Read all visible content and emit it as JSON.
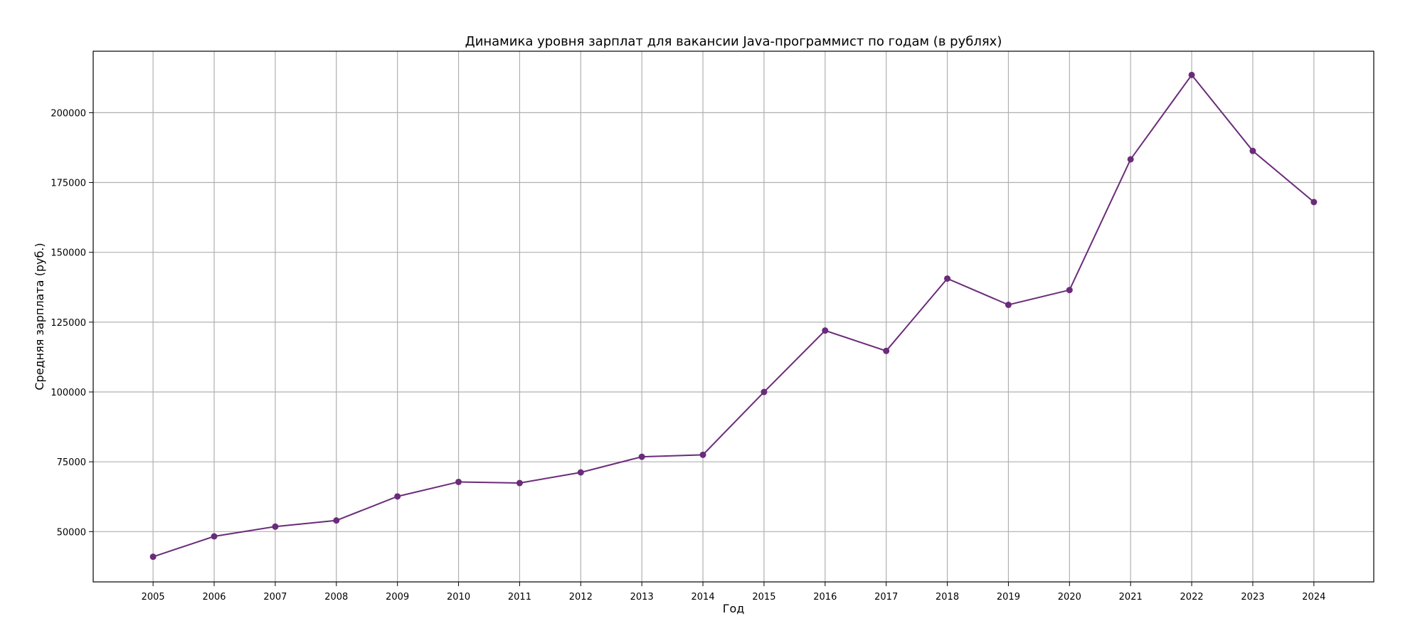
{
  "chart_data": {
    "type": "line",
    "title": "Динамика уровня зарплат для вакансии Java-программист по годам (в рублях)",
    "xlabel": "Год",
    "ylabel": "Средняя зарплата (руб.)",
    "x": [
      "2005",
      "2006",
      "2007",
      "2008",
      "2009",
      "2010",
      "2011",
      "2012",
      "2013",
      "2014",
      "2015",
      "2016",
      "2017",
      "2018",
      "2019",
      "2020",
      "2021",
      "2022",
      "2023",
      "2024"
    ],
    "series": [
      {
        "values": [
          41000,
          48300,
          51800,
          54000,
          62600,
          67800,
          67400,
          71200,
          76800,
          77500,
          100000,
          122000,
          114700,
          140600,
          131200,
          136500,
          183300,
          213500,
          186300,
          168000
        ],
        "color": "#6a2c7a"
      }
    ],
    "yticks": [
      "50000",
      "75000",
      "100000",
      "125000",
      "150000",
      "175000",
      "200000"
    ],
    "ylim": [
      32000,
      222000
    ],
    "xlim": [
      2004.02,
      2024.98
    ],
    "grid": true,
    "legend": "none"
  }
}
